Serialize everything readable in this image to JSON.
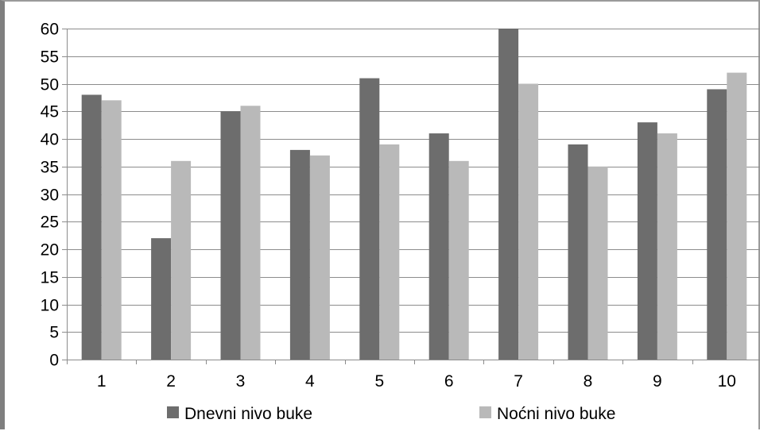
{
  "chart_data": {
    "type": "bar",
    "categories": [
      "1",
      "2",
      "3",
      "4",
      "5",
      "6",
      "7",
      "8",
      "9",
      "10"
    ],
    "series": [
      {
        "name": "Dnevni nivo buke",
        "values": [
          48,
          22,
          45,
          38,
          51,
          41,
          60,
          39,
          43,
          49
        ],
        "color": "#6d6d6d"
      },
      {
        "name": "Noćni nivo buke",
        "values": [
          47,
          36,
          46,
          37,
          39,
          36,
          50,
          35,
          41,
          52
        ],
        "color": "#b9b9b9"
      }
    ],
    "yticks": [
      "0",
      "5",
      "10",
      "15",
      "20",
      "25",
      "30",
      "35",
      "40",
      "45",
      "50",
      "55",
      "60"
    ],
    "ylim": [
      0,
      60
    ],
    "grid": true,
    "legend_position": "bottom"
  }
}
